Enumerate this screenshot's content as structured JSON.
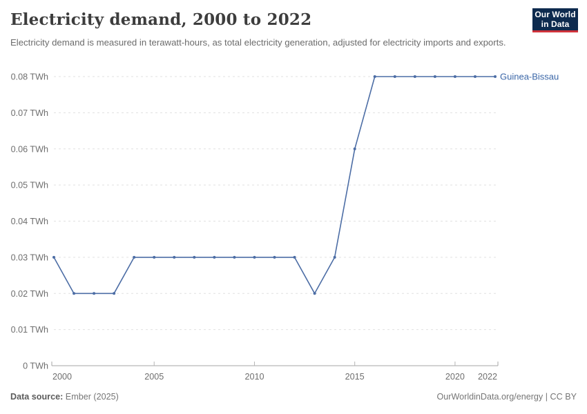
{
  "header": {
    "title": "Electricity demand, 2000 to 2022",
    "subtitle": "Electricity demand is measured in terawatt-hours, as total electricity generation, adjusted for electricity imports and exports.",
    "logo": {
      "line1": "Our World",
      "line2": "in Data"
    }
  },
  "chart_data": {
    "type": "line",
    "title": "Electricity demand, 2000 to 2022",
    "unit": "TWh",
    "x": [
      2000,
      2001,
      2002,
      2003,
      2004,
      2005,
      2006,
      2007,
      2008,
      2009,
      2010,
      2011,
      2012,
      2013,
      2014,
      2015,
      2016,
      2017,
      2018,
      2019,
      2020,
      2021,
      2022
    ],
    "series": [
      {
        "name": "Guinea-Bissau",
        "color": "#4c6da5",
        "values": [
          0.03,
          0.02,
          0.02,
          0.02,
          0.03,
          0.03,
          0.03,
          0.03,
          0.03,
          0.03,
          0.03,
          0.03,
          0.03,
          0.02,
          0.03,
          0.06,
          0.08,
          0.08,
          0.08,
          0.08,
          0.08,
          0.08,
          0.08
        ]
      }
    ],
    "xlabel": "",
    "ylabel": "",
    "ylim": [
      0,
      0.08
    ],
    "yticks": [
      {
        "value": 0,
        "label": "0 TWh"
      },
      {
        "value": 0.01,
        "label": "0.01 TWh"
      },
      {
        "value": 0.02,
        "label": "0.02 TWh"
      },
      {
        "value": 0.03,
        "label": "0.03 TWh"
      },
      {
        "value": 0.04,
        "label": "0.04 TWh"
      },
      {
        "value": 0.05,
        "label": "0.05 TWh"
      },
      {
        "value": 0.06,
        "label": "0.06 TWh"
      },
      {
        "value": 0.07,
        "label": "0.07 TWh"
      },
      {
        "value": 0.08,
        "label": "0.08 TWh"
      }
    ],
    "xticks": [
      2000,
      2005,
      2010,
      2015,
      2020,
      2022
    ],
    "grid": "horizontal-dashed",
    "legend_position": "end-of-line-label"
  },
  "footer": {
    "source_label": "Data source:",
    "source_value": "Ember (2025)",
    "rights": "OurWorldinData.org/energy | CC BY"
  },
  "colors": {
    "line": "#4c6da5",
    "series_label": "#3a66a7",
    "grid": "#e0e0e0",
    "axis": "#a5a5a5",
    "tick_text": "#6e6e6e",
    "logo_bg": "#0d2a4e",
    "logo_red": "#d0333c"
  }
}
